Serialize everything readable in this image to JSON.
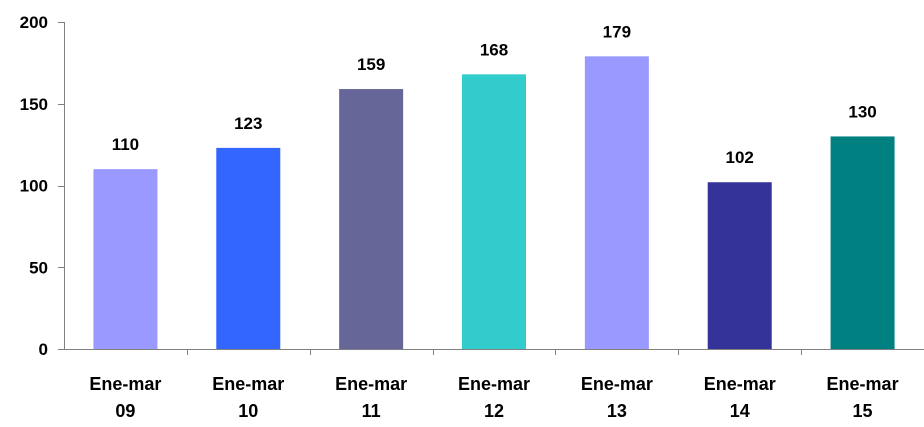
{
  "chart_data": {
    "type": "bar",
    "categories": [
      [
        "Ene-mar",
        "09"
      ],
      [
        "Ene-mar",
        "10"
      ],
      [
        "Ene-mar",
        "11"
      ],
      [
        "Ene-mar",
        "12"
      ],
      [
        "Ene-mar",
        "13"
      ],
      [
        "Ene-mar",
        "14"
      ],
      [
        "Ene-mar",
        "15"
      ]
    ],
    "values": [
      110,
      123,
      159,
      168,
      179,
      102,
      130
    ],
    "data_labels": [
      "110",
      "123",
      "159",
      "168",
      "179",
      "102",
      "130"
    ],
    "bar_colors": [
      "#9999FF",
      "#3366FF",
      "#666699",
      "#33CCCC",
      "#9999FF",
      "#333399",
      "#008080"
    ],
    "ylim": [
      0,
      200
    ],
    "yticks": [
      0,
      50,
      100,
      150,
      200
    ],
    "ytick_labels": [
      "0",
      "50",
      "100",
      "150",
      "200"
    ],
    "grid": false,
    "legend": "none",
    "title": "",
    "xlabel": "",
    "ylabel": ""
  }
}
